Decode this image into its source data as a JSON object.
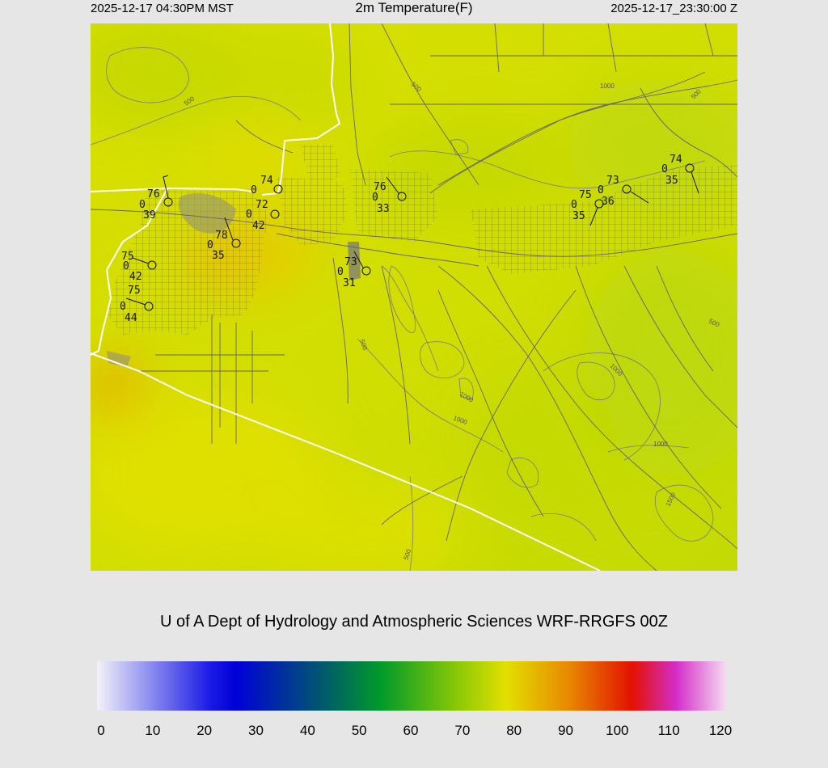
{
  "header": {
    "left": "2025-12-17 04:30PM MST",
    "title": "2m Temperature(F)",
    "right": "2025-12-17_23:30:00 Z"
  },
  "credit": "U of A Dept of Hydrology and Atmospheric Sciences WRF-RRGFS 00Z",
  "colorbar": {
    "ticks": [
      "0",
      "10",
      "20",
      "30",
      "40",
      "50",
      "60",
      "70",
      "80",
      "90",
      "100",
      "110",
      "120"
    ],
    "colors": [
      "#f4f4f8",
      "#0000e6",
      "#00607a",
      "#009a2a",
      "#e2e000",
      "#e89a00",
      "#e22a00",
      "#dd0033",
      "#d42cc8",
      "#f4dcf0"
    ]
  },
  "contour_labels": [
    "500",
    "500",
    "500",
    "500",
    "500",
    "500",
    "1000",
    "1000",
    "1000",
    "1000",
    "1000",
    "1500"
  ],
  "stations": [
    {
      "temp": "76",
      "wind": "0",
      "dew": "39"
    },
    {
      "temp": "74",
      "wind": "0",
      "dew": ""
    },
    {
      "temp": "72",
      "wind": "0",
      "dew": "42"
    },
    {
      "temp": "78",
      "wind": "0",
      "dew": "35"
    },
    {
      "temp": "75",
      "wind": "0",
      "dew": "42"
    },
    {
      "temp": "75",
      "wind": "0",
      "dew": "44"
    },
    {
      "temp": "73",
      "wind": "0",
      "dew": "31"
    },
    {
      "temp": "76",
      "wind": "0",
      "dew": "33"
    },
    {
      "temp": "75",
      "wind": "0",
      "dew": "35"
    },
    {
      "temp": "73",
      "wind": "0",
      "dew": "36"
    },
    {
      "temp": "74",
      "wind": "0",
      "dew": "35"
    }
  ],
  "map_colors": {
    "base": "#d6e000",
    "cool": "#bcd805",
    "warm": "#e8c800",
    "hot": "#e8b000",
    "road": "#666666",
    "border": "#ffffff"
  }
}
